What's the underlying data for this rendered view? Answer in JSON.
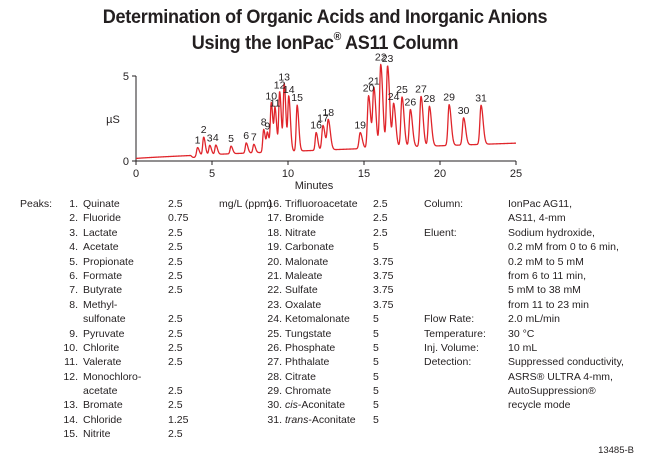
{
  "title_line1": "Determination of Organic Acids and Inorganic Anions",
  "title_line2_pre": "Using the IonPac",
  "title_line2_reg": "®",
  "title_line2_post": " AS11 Column",
  "chart_data": {
    "type": "line",
    "title": "Determination of Organic Acids and Inorganic Anions Using the IonPac® AS11 Column",
    "xlabel": "Minutes",
    "ylabel": "µS",
    "xlim": [
      0,
      25
    ],
    "ylim": [
      0,
      5
    ],
    "xticks": [
      "0",
      "5",
      "10",
      "15",
      "20",
      "25"
    ],
    "yticks": [
      "0",
      "5"
    ],
    "grid": false,
    "line_color": "#e0252b",
    "baseline_start": 0.15,
    "baseline_end": 1.05,
    "peaks": [
      {
        "label": "1",
        "time": 4.05,
        "height": 0.45
      },
      {
        "label": "2",
        "time": 4.45,
        "height": 1.05
      },
      {
        "label": "3",
        "time": 4.85,
        "height": 0.55
      },
      {
        "label": "4",
        "time": 5.25,
        "height": 0.55
      },
      {
        "label": "5",
        "time": 6.25,
        "height": 0.45
      },
      {
        "label": "6",
        "time": 7.25,
        "height": 0.6
      },
      {
        "label": "7",
        "time": 7.75,
        "height": 0.5
      },
      {
        "label": "8",
        "time": 8.4,
        "height": 1.35
      },
      {
        "label": "9",
        "time": 8.65,
        "height": 1.1
      },
      {
        "label": "10",
        "time": 8.9,
        "height": 2.85
      },
      {
        "label": "11",
        "time": 9.15,
        "height": 2.45
      },
      {
        "label": "12",
        "time": 9.45,
        "height": 3.5
      },
      {
        "label": "13",
        "time": 9.75,
        "height": 3.95
      },
      {
        "label": "14",
        "time": 10.05,
        "height": 3.2
      },
      {
        "label": "15",
        "time": 10.6,
        "height": 2.7
      },
      {
        "label": "16",
        "time": 11.85,
        "height": 1.05
      },
      {
        "label": "17",
        "time": 12.3,
        "height": 1.45
      },
      {
        "label": "18",
        "time": 12.65,
        "height": 1.75
      },
      {
        "label": "19",
        "time": 14.75,
        "height": 0.95
      },
      {
        "label": "20",
        "time": 15.3,
        "height": 3.1
      },
      {
        "label": "21",
        "time": 15.65,
        "height": 3.5
      },
      {
        "label": "22",
        "time": 16.1,
        "height": 4.9
      },
      {
        "label": "23",
        "time": 16.55,
        "height": 4.8
      },
      {
        "label": "24",
        "time": 16.95,
        "height": 2.55
      },
      {
        "label": "25",
        "time": 17.5,
        "height": 2.95
      },
      {
        "label": "26",
        "time": 18.05,
        "height": 2.2
      },
      {
        "label": "27",
        "time": 18.75,
        "height": 2.95
      },
      {
        "label": "28",
        "time": 19.3,
        "height": 2.35
      },
      {
        "label": "29",
        "time": 20.6,
        "height": 2.4
      },
      {
        "label": "30",
        "time": 21.55,
        "height": 1.6
      },
      {
        "label": "31",
        "time": 22.7,
        "height": 2.3
      }
    ]
  },
  "peaks_table": {
    "heading": "Peaks:",
    "unit": "mg/L (ppm)",
    "col1": [
      {
        "lines": [
          {
            "num": "1.",
            "name": "Quinate",
            "conc": "2.5"
          }
        ]
      },
      {
        "lines": [
          {
            "num": "2.",
            "name": "Fluoride",
            "conc": "0.75"
          }
        ]
      },
      {
        "lines": [
          {
            "num": "3.",
            "name": "Lactate",
            "conc": "2.5"
          }
        ]
      },
      {
        "lines": [
          {
            "num": "4.",
            "name": "Acetate",
            "conc": "2.5"
          }
        ]
      },
      {
        "lines": [
          {
            "num": "5.",
            "name": "Propionate",
            "conc": "2.5"
          }
        ]
      },
      {
        "lines": [
          {
            "num": "6.",
            "name": "Formate",
            "conc": "2.5"
          }
        ]
      },
      {
        "lines": [
          {
            "num": "7.",
            "name": "Butyrate",
            "conc": "2.5"
          }
        ]
      },
      {
        "lines": [
          {
            "num": "8.",
            "name": "Methyl-",
            "conc": ""
          },
          {
            "num": "",
            "name": "sulfonate",
            "conc": "2.5"
          }
        ]
      },
      {
        "lines": [
          {
            "num": "9.",
            "name": "Pyruvate",
            "conc": "2.5"
          }
        ]
      },
      {
        "lines": [
          {
            "num": "10.",
            "name": "Chlorite",
            "conc": "2.5"
          }
        ]
      },
      {
        "lines": [
          {
            "num": "11.",
            "name": "Valerate",
            "conc": "2.5"
          }
        ]
      },
      {
        "lines": [
          {
            "num": "12.",
            "name": "Monochloro-",
            "conc": ""
          },
          {
            "num": "",
            "name": "acetate",
            "conc": "2.5"
          }
        ]
      },
      {
        "lines": [
          {
            "num": "13.",
            "name": "Bromate",
            "conc": "2.5"
          }
        ]
      },
      {
        "lines": [
          {
            "num": "14.",
            "name": "Chloride",
            "conc": "1.25"
          }
        ]
      },
      {
        "lines": [
          {
            "num": "15.",
            "name": "Nitrite",
            "conc": "2.5"
          }
        ]
      }
    ],
    "col2": [
      {
        "num": "16.",
        "prefix": "",
        "name": "Trifluoroacetate",
        "conc": "2.5"
      },
      {
        "num": "17.",
        "prefix": "",
        "name": "Bromide",
        "conc": "2.5"
      },
      {
        "num": "18.",
        "prefix": "",
        "name": "Nitrate",
        "conc": "2.5"
      },
      {
        "num": "19.",
        "prefix": "",
        "name": "Carbonate",
        "conc": "5"
      },
      {
        "num": "20.",
        "prefix": "",
        "name": "Malonate",
        "conc": "3.75"
      },
      {
        "num": "21.",
        "prefix": "",
        "name": "Maleate",
        "conc": "3.75"
      },
      {
        "num": "22.",
        "prefix": "",
        "name": "Sulfate",
        "conc": "3.75"
      },
      {
        "num": "23.",
        "prefix": "",
        "name": "Oxalate",
        "conc": "3.75"
      },
      {
        "num": "24.",
        "prefix": "",
        "name": "Ketomalonate",
        "conc": "5"
      },
      {
        "num": "25.",
        "prefix": "",
        "name": "Tungstate",
        "conc": "5"
      },
      {
        "num": "26.",
        "prefix": "",
        "name": "Phosphate",
        "conc": "5"
      },
      {
        "num": "27.",
        "prefix": "",
        "name": "Phthalate",
        "conc": "5"
      },
      {
        "num": "28.",
        "prefix": "",
        "name": "Citrate",
        "conc": "5"
      },
      {
        "num": "29.",
        "prefix": "",
        "name": "Chromate",
        "conc": "5"
      },
      {
        "num": "30.",
        "prefix": "cis",
        "name": "-Aconitate",
        "conc": "5"
      },
      {
        "num": "31.",
        "prefix": "trans",
        "name": "-Aconitate",
        "conc": "5"
      }
    ]
  },
  "conditions": [
    {
      "label": "Column:",
      "lines": [
        "IonPac AG11,",
        "AS11, 4-mm"
      ]
    },
    {
      "label": "Eluent:",
      "lines": [
        "Sodium hydroxide,",
        "0.2 mM from 0 to 6 min,",
        "0.2 mM to 5 mM",
        "from 6 to 11 min,",
        "5 mM to 38 mM",
        "from 11 to 23 min"
      ]
    },
    {
      "label": "Flow Rate:",
      "lines": [
        "2.0 mL/min"
      ]
    },
    {
      "label": "Temperature:",
      "lines": [
        "30 °C"
      ]
    },
    {
      "label": "Inj. Volume:",
      "lines": [
        "10 mL"
      ]
    },
    {
      "label": "Detection:",
      "lines": [
        "Suppressed conductivity,",
        "ASRS® ULTRA 4-mm,",
        "AutoSuppression®",
        "recycle mode"
      ]
    }
  ],
  "figure_code": "13485-B"
}
